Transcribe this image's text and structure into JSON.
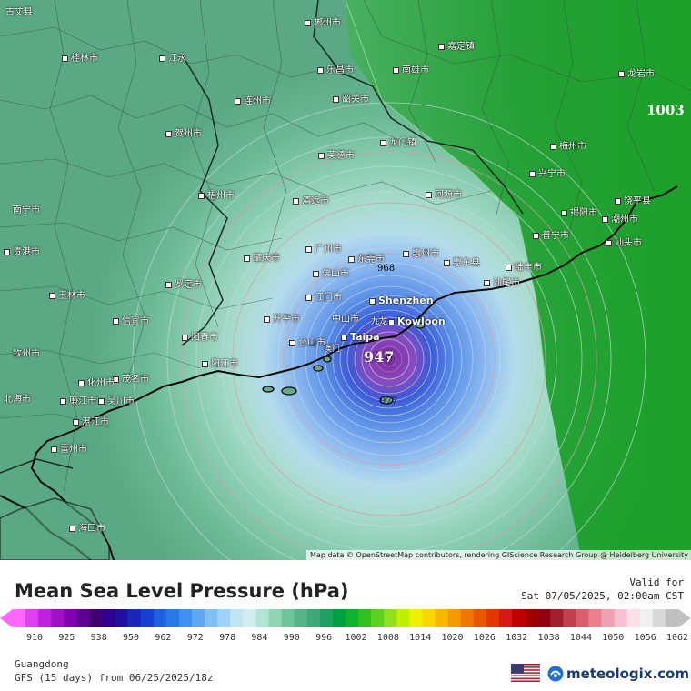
{
  "map": {
    "attribution": "Map data © OpenStreetMap contributors, rendering GIScience Research Group @ Heidelberg University",
    "storm_center_label": "947",
    "isobar_labels": [
      {
        "value": "968",
        "color": "#e8f0f8"
      },
      {
        "value": "1003",
        "color": "#ffffff"
      },
      {
        "value": "977",
        "color": "#1a1a4a"
      }
    ],
    "places": [
      {
        "name": "古丈县"
      },
      {
        "name": "郴州市"
      },
      {
        "name": "桂林市"
      },
      {
        "name": "江永"
      },
      {
        "name": "乐昌市"
      },
      {
        "name": "韶关市"
      },
      {
        "name": "连州市"
      },
      {
        "name": "贺州市"
      },
      {
        "name": "英德市"
      },
      {
        "name": "龙门镇"
      },
      {
        "name": "清远市"
      },
      {
        "name": "肇庆市"
      },
      {
        "name": "广州市"
      },
      {
        "name": "惠州市"
      },
      {
        "name": "东莞市"
      },
      {
        "name": "佛山市"
      },
      {
        "name": "Shenzhen"
      },
      {
        "name": "Kowloon"
      },
      {
        "name": "Taipa"
      },
      {
        "name": "中山市"
      },
      {
        "name": "开平市"
      },
      {
        "name": "江门市"
      },
      {
        "name": "台山市"
      },
      {
        "name": "阳江市"
      },
      {
        "name": "茂名市"
      },
      {
        "name": "化州市"
      },
      {
        "name": "湛江市"
      },
      {
        "name": "雷州市"
      },
      {
        "name": "海口市"
      },
      {
        "name": "梅州市"
      },
      {
        "name": "兴宁市"
      },
      {
        "name": "揭阳市"
      },
      {
        "name": "潮州市"
      },
      {
        "name": "汕头市"
      },
      {
        "name": "饶平县"
      },
      {
        "name": "河源市"
      },
      {
        "name": "惠东县"
      },
      {
        "name": "汕尾市"
      },
      {
        "name": "陆丰市"
      },
      {
        "name": "普宁市"
      },
      {
        "name": "南雄市"
      },
      {
        "name": "嘉定镇"
      },
      {
        "name": "龙岩市"
      },
      {
        "name": "梧州市"
      },
      {
        "name": "玉林市"
      },
      {
        "name": "贵港市"
      },
      {
        "name": "罗定市"
      },
      {
        "name": "信宜市"
      },
      {
        "name": "阳春市"
      },
      {
        "name": "吴川市"
      },
      {
        "name": "廉江市"
      },
      {
        "name": "北海市"
      },
      {
        "name": "钦州市"
      },
      {
        "name": "南宁市"
      },
      {
        "name": "九龙"
      },
      {
        "name": "澳门"
      }
    ]
  },
  "legend": {
    "title": "Mean Sea Level Pressure (hPa)",
    "valid_label": "Valid for",
    "valid_time": "Sat 07/05/2025, 02:00am CST",
    "ticks": [
      "910",
      "925",
      "938",
      "950",
      "962",
      "972",
      "978",
      "984",
      "990",
      "996",
      "1002",
      "1008",
      "1014",
      "1020",
      "1026",
      "1032",
      "1038",
      "1044",
      "1050",
      "1056",
      "1062"
    ],
    "colors": [
      "#ff66ff",
      "#e040f0",
      "#c020e0",
      "#a010c8",
      "#8000b0",
      "#600090",
      "#400070",
      "#300090",
      "#2010a0",
      "#1828b8",
      "#1840d0",
      "#2060e0",
      "#2878e8",
      "#4090f0",
      "#60a8f0",
      "#80c0f4",
      "#a0d4f6",
      "#c0e6f4",
      "#d0f0f0",
      "#b0e4d4",
      "#90d4b4",
      "#70c49c",
      "#58b488",
      "#40a878",
      "#20a060",
      "#00a040",
      "#10b030",
      "#30c020",
      "#60d020",
      "#90e020",
      "#c0f000",
      "#f0f000",
      "#f8d800",
      "#f8b800",
      "#f89800",
      "#f07800",
      "#e85800",
      "#e03800",
      "#d81818",
      "#c00000",
      "#a00000",
      "#900010",
      "#a02030",
      "#c04050",
      "#d86070",
      "#e88090",
      "#f0a0b0",
      "#f8c0d0",
      "#fce0e8",
      "#f0f0f0",
      "#d8d8d8",
      "#c0c0c0"
    ],
    "region": "Guangdong",
    "model": "GFS (15 days) from  06/25/2025/18z",
    "brand": "meteologix.com"
  }
}
